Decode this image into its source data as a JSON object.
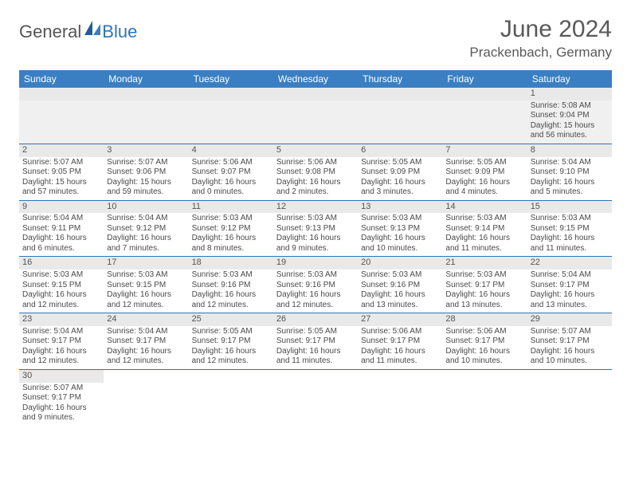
{
  "logo": {
    "part1": "General",
    "part2": "Blue"
  },
  "title": "June 2024",
  "location": "Prackenbach, Germany",
  "colors": {
    "header_bg": "#3a7fc2",
    "header_text": "#ffffff",
    "border": "#2e74b5",
    "daynum_bg": "#e9e9e9",
    "text": "#4a4a4a",
    "title_color": "#595959"
  },
  "day_headers": [
    "Sunday",
    "Monday",
    "Tuesday",
    "Wednesday",
    "Thursday",
    "Friday",
    "Saturday"
  ],
  "weeks": [
    [
      {
        "n": "",
        "sr": "",
        "ss": "",
        "dl": ""
      },
      {
        "n": "",
        "sr": "",
        "ss": "",
        "dl": ""
      },
      {
        "n": "",
        "sr": "",
        "ss": "",
        "dl": ""
      },
      {
        "n": "",
        "sr": "",
        "ss": "",
        "dl": ""
      },
      {
        "n": "",
        "sr": "",
        "ss": "",
        "dl": ""
      },
      {
        "n": "",
        "sr": "",
        "ss": "",
        "dl": ""
      },
      {
        "n": "1",
        "sr": "Sunrise: 5:08 AM",
        "ss": "Sunset: 9:04 PM",
        "dl": "Daylight: 15 hours and 56 minutes."
      }
    ],
    [
      {
        "n": "2",
        "sr": "Sunrise: 5:07 AM",
        "ss": "Sunset: 9:05 PM",
        "dl": "Daylight: 15 hours and 57 minutes."
      },
      {
        "n": "3",
        "sr": "Sunrise: 5:07 AM",
        "ss": "Sunset: 9:06 PM",
        "dl": "Daylight: 15 hours and 59 minutes."
      },
      {
        "n": "4",
        "sr": "Sunrise: 5:06 AM",
        "ss": "Sunset: 9:07 PM",
        "dl": "Daylight: 16 hours and 0 minutes."
      },
      {
        "n": "5",
        "sr": "Sunrise: 5:06 AM",
        "ss": "Sunset: 9:08 PM",
        "dl": "Daylight: 16 hours and 2 minutes."
      },
      {
        "n": "6",
        "sr": "Sunrise: 5:05 AM",
        "ss": "Sunset: 9:09 PM",
        "dl": "Daylight: 16 hours and 3 minutes."
      },
      {
        "n": "7",
        "sr": "Sunrise: 5:05 AM",
        "ss": "Sunset: 9:09 PM",
        "dl": "Daylight: 16 hours and 4 minutes."
      },
      {
        "n": "8",
        "sr": "Sunrise: 5:04 AM",
        "ss": "Sunset: 9:10 PM",
        "dl": "Daylight: 16 hours and 5 minutes."
      }
    ],
    [
      {
        "n": "9",
        "sr": "Sunrise: 5:04 AM",
        "ss": "Sunset: 9:11 PM",
        "dl": "Daylight: 16 hours and 6 minutes."
      },
      {
        "n": "10",
        "sr": "Sunrise: 5:04 AM",
        "ss": "Sunset: 9:12 PM",
        "dl": "Daylight: 16 hours and 7 minutes."
      },
      {
        "n": "11",
        "sr": "Sunrise: 5:03 AM",
        "ss": "Sunset: 9:12 PM",
        "dl": "Daylight: 16 hours and 8 minutes."
      },
      {
        "n": "12",
        "sr": "Sunrise: 5:03 AM",
        "ss": "Sunset: 9:13 PM",
        "dl": "Daylight: 16 hours and 9 minutes."
      },
      {
        "n": "13",
        "sr": "Sunrise: 5:03 AM",
        "ss": "Sunset: 9:13 PM",
        "dl": "Daylight: 16 hours and 10 minutes."
      },
      {
        "n": "14",
        "sr": "Sunrise: 5:03 AM",
        "ss": "Sunset: 9:14 PM",
        "dl": "Daylight: 16 hours and 11 minutes."
      },
      {
        "n": "15",
        "sr": "Sunrise: 5:03 AM",
        "ss": "Sunset: 9:15 PM",
        "dl": "Daylight: 16 hours and 11 minutes."
      }
    ],
    [
      {
        "n": "16",
        "sr": "Sunrise: 5:03 AM",
        "ss": "Sunset: 9:15 PM",
        "dl": "Daylight: 16 hours and 12 minutes."
      },
      {
        "n": "17",
        "sr": "Sunrise: 5:03 AM",
        "ss": "Sunset: 9:15 PM",
        "dl": "Daylight: 16 hours and 12 minutes."
      },
      {
        "n": "18",
        "sr": "Sunrise: 5:03 AM",
        "ss": "Sunset: 9:16 PM",
        "dl": "Daylight: 16 hours and 12 minutes."
      },
      {
        "n": "19",
        "sr": "Sunrise: 5:03 AM",
        "ss": "Sunset: 9:16 PM",
        "dl": "Daylight: 16 hours and 12 minutes."
      },
      {
        "n": "20",
        "sr": "Sunrise: 5:03 AM",
        "ss": "Sunset: 9:16 PM",
        "dl": "Daylight: 16 hours and 13 minutes."
      },
      {
        "n": "21",
        "sr": "Sunrise: 5:03 AM",
        "ss": "Sunset: 9:17 PM",
        "dl": "Daylight: 16 hours and 13 minutes."
      },
      {
        "n": "22",
        "sr": "Sunrise: 5:04 AM",
        "ss": "Sunset: 9:17 PM",
        "dl": "Daylight: 16 hours and 13 minutes."
      }
    ],
    [
      {
        "n": "23",
        "sr": "Sunrise: 5:04 AM",
        "ss": "Sunset: 9:17 PM",
        "dl": "Daylight: 16 hours and 12 minutes."
      },
      {
        "n": "24",
        "sr": "Sunrise: 5:04 AM",
        "ss": "Sunset: 9:17 PM",
        "dl": "Daylight: 16 hours and 12 minutes."
      },
      {
        "n": "25",
        "sr": "Sunrise: 5:05 AM",
        "ss": "Sunset: 9:17 PM",
        "dl": "Daylight: 16 hours and 12 minutes."
      },
      {
        "n": "26",
        "sr": "Sunrise: 5:05 AM",
        "ss": "Sunset: 9:17 PM",
        "dl": "Daylight: 16 hours and 11 minutes."
      },
      {
        "n": "27",
        "sr": "Sunrise: 5:06 AM",
        "ss": "Sunset: 9:17 PM",
        "dl": "Daylight: 16 hours and 11 minutes."
      },
      {
        "n": "28",
        "sr": "Sunrise: 5:06 AM",
        "ss": "Sunset: 9:17 PM",
        "dl": "Daylight: 16 hours and 10 minutes."
      },
      {
        "n": "29",
        "sr": "Sunrise: 5:07 AM",
        "ss": "Sunset: 9:17 PM",
        "dl": "Daylight: 16 hours and 10 minutes."
      }
    ],
    [
      {
        "n": "30",
        "sr": "Sunrise: 5:07 AM",
        "ss": "Sunset: 9:17 PM",
        "dl": "Daylight: 16 hours and 9 minutes."
      },
      {
        "n": "",
        "sr": "",
        "ss": "",
        "dl": ""
      },
      {
        "n": "",
        "sr": "",
        "ss": "",
        "dl": ""
      },
      {
        "n": "",
        "sr": "",
        "ss": "",
        "dl": ""
      },
      {
        "n": "",
        "sr": "",
        "ss": "",
        "dl": ""
      },
      {
        "n": "",
        "sr": "",
        "ss": "",
        "dl": ""
      },
      {
        "n": "",
        "sr": "",
        "ss": "",
        "dl": ""
      }
    ]
  ]
}
